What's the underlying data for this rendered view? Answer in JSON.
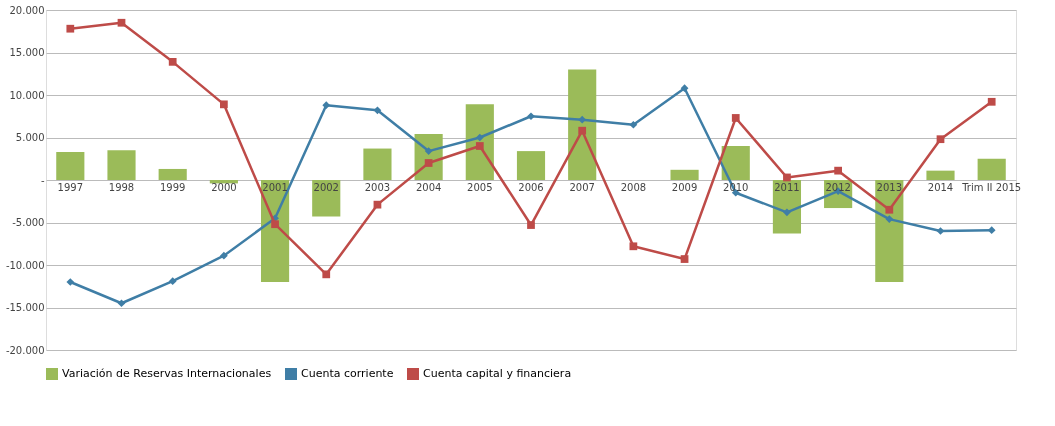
{
  "chart_data": {
    "type": "bar",
    "categories": [
      "1997",
      "1998",
      "1999",
      "2000",
      "2001",
      "2002",
      "2003",
      "2004",
      "2005",
      "2006",
      "2007",
      "2008",
      "2009",
      "2010",
      "2011",
      "2012",
      "2013",
      "2014",
      "Trim II 2015"
    ],
    "series": [
      {
        "name": "Variación de Reservas Internacionales",
        "color": "#9bbb59",
        "values": [
          3300,
          3500,
          1300,
          -400,
          -12000,
          -4300,
          3700,
          5400,
          8900,
          3400,
          13000,
          null,
          1200,
          4000,
          -6300,
          -3300,
          -12000,
          1100,
          2500
        ]
      },
      {
        "name": "Cuenta corriente",
        "type": "line",
        "color": "#3f7ea6",
        "marker": "diamond",
        "values": [
          -12000,
          -14500,
          -11900,
          -8900,
          -4500,
          8800,
          8200,
          3400,
          5000,
          7500,
          7100,
          6500,
          10800,
          -1500,
          -3800,
          -1300,
          -4600,
          -6000,
          -5900
        ]
      },
      {
        "name": "Cuenta capital y financiera",
        "type": "line",
        "color": "#be4b48",
        "marker": "square",
        "values": [
          17800,
          18500,
          13900,
          8900,
          -5200,
          -11100,
          -2900,
          2000,
          4000,
          -5300,
          5800,
          -7800,
          -9300,
          7300,
          300,
          1100,
          -3500,
          4800,
          9200
        ]
      }
    ],
    "ylim": [
      -20000,
      20000
    ],
    "yticks": [
      {
        "value": -20000,
        "label": "-20.000"
      },
      {
        "value": -15000,
        "label": "-15.000"
      },
      {
        "value": -10000,
        "label": "-10.000"
      },
      {
        "value": -5000,
        "label": "-5.000"
      },
      {
        "value": 0,
        "label": "-"
      },
      {
        "value": 5000,
        "label": "5.000"
      },
      {
        "value": 10000,
        "label": "10.000"
      },
      {
        "value": 15000,
        "label": "15.000"
      },
      {
        "value": 20000,
        "label": "20.000"
      }
    ],
    "grid": "y",
    "legend": "bottom"
  }
}
